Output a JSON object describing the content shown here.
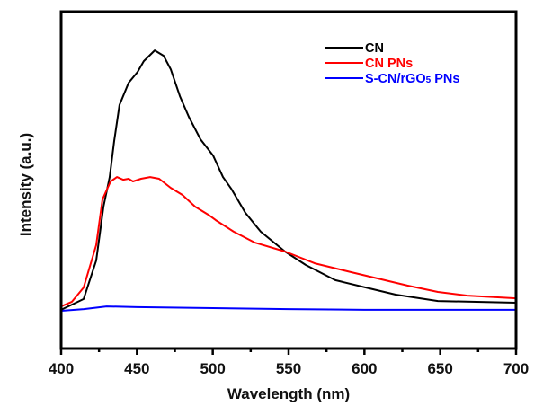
{
  "chart_data": {
    "type": "line",
    "title": "",
    "xlabel": "Wavelength (nm)",
    "ylabel": "Intensity (a.u.)",
    "xlim": [
      400,
      700
    ],
    "ylim": [
      0,
      100
    ],
    "x_ticks": [
      400,
      450,
      500,
      550,
      600,
      650,
      700
    ],
    "x_minor_ticks": [
      425,
      475,
      525,
      575,
      625,
      675
    ],
    "y_ticks": [],
    "grid": false,
    "legend_position": "top-right",
    "series": [
      {
        "name": "CN",
        "label_main": "CN",
        "label_sub": "",
        "label_tail": "",
        "color": "#000000",
        "x": [
          400,
          414.8,
          423.1,
          427.9,
          432.0,
          435.0,
          438.5,
          444.5,
          450.4,
          454.5,
          461.7,
          467.6,
          472.3,
          478.3,
          484.2,
          491.9,
          500.2,
          506.7,
          512.1,
          521.5,
          531.6,
          547.6,
          561.3,
          580.8,
          601.0,
          620.6,
          648.4,
          700
        ],
        "y": [
          11.5,
          14.7,
          26.1,
          42.1,
          50.9,
          61.6,
          72.3,
          78.9,
          82.1,
          85.3,
          88.5,
          86.9,
          82.9,
          74.9,
          68.8,
          62.1,
          57.3,
          50.9,
          47.5,
          40.3,
          34.7,
          28.8,
          24.8,
          20.3,
          18.1,
          16.0,
          14.1,
          13.6
        ]
      },
      {
        "name": "CN PNs",
        "label_main": "CN PNs",
        "label_sub": "",
        "label_tail": "",
        "color": "#ff0000",
        "x": [
          400,
          407.1,
          414.8,
          423.1,
          427.3,
          432.6,
          436.8,
          440.9,
          444.5,
          447.4,
          452.7,
          458.7,
          464.6,
          472.3,
          480.0,
          488.4,
          497.8,
          502.0,
          513.8,
          527.5,
          547.6,
          567.2,
          590.9,
          608.7,
          628.3,
          648.4,
          668.0,
          700
        ],
        "y": [
          12.5,
          13.9,
          18.1,
          30.7,
          44.3,
          49.6,
          50.9,
          50.1,
          50.4,
          49.6,
          50.4,
          50.9,
          50.4,
          47.7,
          45.6,
          42.1,
          39.5,
          38.1,
          34.7,
          31.5,
          28.8,
          25.3,
          22.7,
          20.8,
          18.7,
          16.8,
          15.7,
          14.9
        ]
      },
      {
        "name": "S-CN/rGO5 PNs",
        "label_main": "S-CN/rGO",
        "label_sub": "5",
        "label_tail": " PNs",
        "color": "#0000ff",
        "x": [
          400,
          415,
          430,
          450,
          500,
          550,
          600,
          650,
          700
        ],
        "y": [
          11.2,
          11.7,
          12.5,
          12.3,
          12.0,
          11.7,
          11.5,
          11.5,
          11.5
        ]
      }
    ]
  }
}
